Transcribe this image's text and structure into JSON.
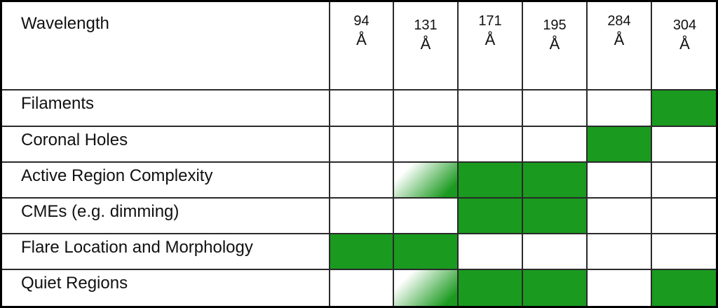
{
  "header": {
    "title": "Wavelength",
    "wavelengths": [
      {
        "number": "94",
        "unit": "Å"
      },
      {
        "number": "131",
        "unit": "Å"
      },
      {
        "number": "171",
        "unit": "Å"
      },
      {
        "number": "195",
        "unit": "Å"
      },
      {
        "number": "284",
        "unit": "Å"
      },
      {
        "number": "304",
        "unit": "Å"
      }
    ]
  },
  "table": {
    "rows": [
      {
        "label": "Filaments",
        "cells": [
          "none",
          "none",
          "none",
          "none",
          "none",
          "full"
        ]
      },
      {
        "label": "Coronal Holes",
        "cells": [
          "none",
          "none",
          "none",
          "none",
          "full",
          "none"
        ]
      },
      {
        "label": "Active Region Complexity",
        "cells": [
          "none",
          "partial",
          "full",
          "full",
          "none",
          "none"
        ]
      },
      {
        "label": "CMEs (e.g. dimming)",
        "cells": [
          "none",
          "none",
          "full",
          "full",
          "none",
          "none"
        ]
      },
      {
        "label": "Flare Location and Morphology",
        "cells": [
          "full",
          "full",
          "none",
          "none",
          "none",
          "none"
        ]
      },
      {
        "label": "Quiet Regions",
        "cells": [
          "none",
          "partial",
          "full",
          "full",
          "none",
          "full"
        ]
      }
    ]
  }
}
